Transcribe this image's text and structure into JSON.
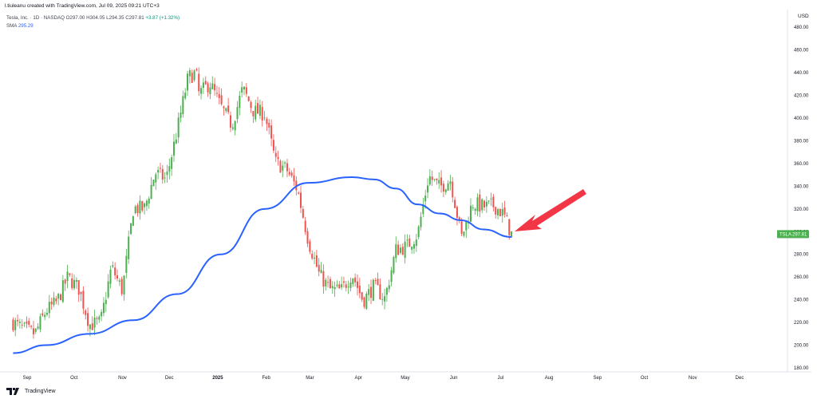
{
  "header": {
    "attribution": "l.tiuleanu created with TradingView.com, Jul 09, 2025 09:21 UTC+3",
    "ohlc_legend": "Tesla, Inc. · 1D · NASDAQ O297.00 H304.05 L294.35 C297.81",
    "ohlc_change": "+3.87 (+1.32%)",
    "sma_label": "SMA",
    "sma_value": "295.29",
    "currency": "USD"
  },
  "footer": {
    "brand": "TradingView"
  },
  "colors": {
    "up": "#4caf50",
    "down": "#ef5350",
    "sma": "#2962ff",
    "arrow": "#f23645",
    "price_tag": "#4caf50"
  },
  "chart_data": {
    "type": "candlestick",
    "symbol": "TSLA",
    "last_price": "297.81",
    "ylim": [
      180,
      490
    ],
    "y_ticks": [
      180,
      200,
      220,
      240,
      260,
      280,
      300,
      320,
      340,
      360,
      380,
      400,
      420,
      440,
      460,
      480
    ],
    "x_ticks": [
      {
        "label": "Sep",
        "bold": false
      },
      {
        "label": "Oct",
        "bold": false
      },
      {
        "label": "Nov",
        "bold": false
      },
      {
        "label": "Dec",
        "bold": false
      },
      {
        "label": "2025",
        "bold": true
      },
      {
        "label": "Feb",
        "bold": false
      },
      {
        "label": "Mar",
        "bold": false
      },
      {
        "label": "Apr",
        "bold": false
      },
      {
        "label": "May",
        "bold": false
      },
      {
        "label": "Jun",
        "bold": false
      },
      {
        "label": "Jul",
        "bold": false
      },
      {
        "label": "Aug",
        "bold": false
      },
      {
        "label": "Sep",
        "bold": false
      },
      {
        "label": "Oct",
        "bold": false
      },
      {
        "label": "Nov",
        "bold": false
      },
      {
        "label": "Dec",
        "bold": false
      }
    ],
    "close_path": [
      [
        "2024-08-23",
        220
      ],
      [
        "2024-08-30",
        214
      ],
      [
        "2024-09-06",
        210
      ],
      [
        "2024-09-13",
        230
      ],
      [
        "2024-09-20",
        238
      ],
      [
        "2024-09-27",
        260
      ],
      [
        "2024-10-04",
        250
      ],
      [
        "2024-10-11",
        218
      ],
      [
        "2024-10-18",
        220
      ],
      [
        "2024-10-25",
        269
      ],
      [
        "2024-11-01",
        248
      ],
      [
        "2024-11-08",
        321
      ],
      [
        "2024-11-15",
        320
      ],
      [
        "2024-11-22",
        352
      ],
      [
        "2024-11-29",
        346
      ],
      [
        "2024-12-06",
        389
      ],
      [
        "2024-12-13",
        436
      ],
      [
        "2024-12-18",
        440
      ],
      [
        "2024-12-20",
        421
      ],
      [
        "2024-12-27",
        431
      ],
      [
        "2025-01-03",
        410
      ],
      [
        "2025-01-10",
        394
      ],
      [
        "2025-01-17",
        426
      ],
      [
        "2025-01-24",
        406
      ],
      [
        "2025-01-31",
        404
      ],
      [
        "2025-02-07",
        361
      ],
      [
        "2025-02-14",
        355
      ],
      [
        "2025-02-21",
        337
      ],
      [
        "2025-02-28",
        292
      ],
      [
        "2025-03-07",
        262
      ],
      [
        "2025-03-14",
        249
      ],
      [
        "2025-03-21",
        248
      ],
      [
        "2025-03-28",
        263
      ],
      [
        "2025-04-04",
        239
      ],
      [
        "2025-04-11",
        252
      ],
      [
        "2025-04-18",
        241
      ],
      [
        "2025-04-25",
        284
      ],
      [
        "2025-05-02",
        287
      ],
      [
        "2025-05-09",
        298
      ],
      [
        "2025-05-16",
        349
      ],
      [
        "2025-05-23",
        339
      ],
      [
        "2025-05-30",
        346
      ],
      [
        "2025-06-06",
        295
      ],
      [
        "2025-06-13",
        325
      ],
      [
        "2025-06-20",
        322
      ],
      [
        "2025-06-27",
        323
      ],
      [
        "2025-07-03",
        315
      ],
      [
        "2025-07-08",
        297.81
      ]
    ],
    "sma": [
      [
        "2024-08-23",
        193
      ],
      [
        "2024-09-13",
        200
      ],
      [
        "2024-10-11",
        210
      ],
      [
        "2024-11-08",
        222
      ],
      [
        "2024-12-06",
        245
      ],
      [
        "2025-01-03",
        280
      ],
      [
        "2025-01-31",
        320
      ],
      [
        "2025-02-28",
        343
      ],
      [
        "2025-03-28",
        348
      ],
      [
        "2025-04-11",
        346
      ],
      [
        "2025-04-25",
        338
      ],
      [
        "2025-05-09",
        324
      ],
      [
        "2025-05-23",
        316
      ],
      [
        "2025-06-06",
        310
      ],
      [
        "2025-06-20",
        302
      ],
      [
        "2025-07-08",
        295.29
      ]
    ]
  }
}
